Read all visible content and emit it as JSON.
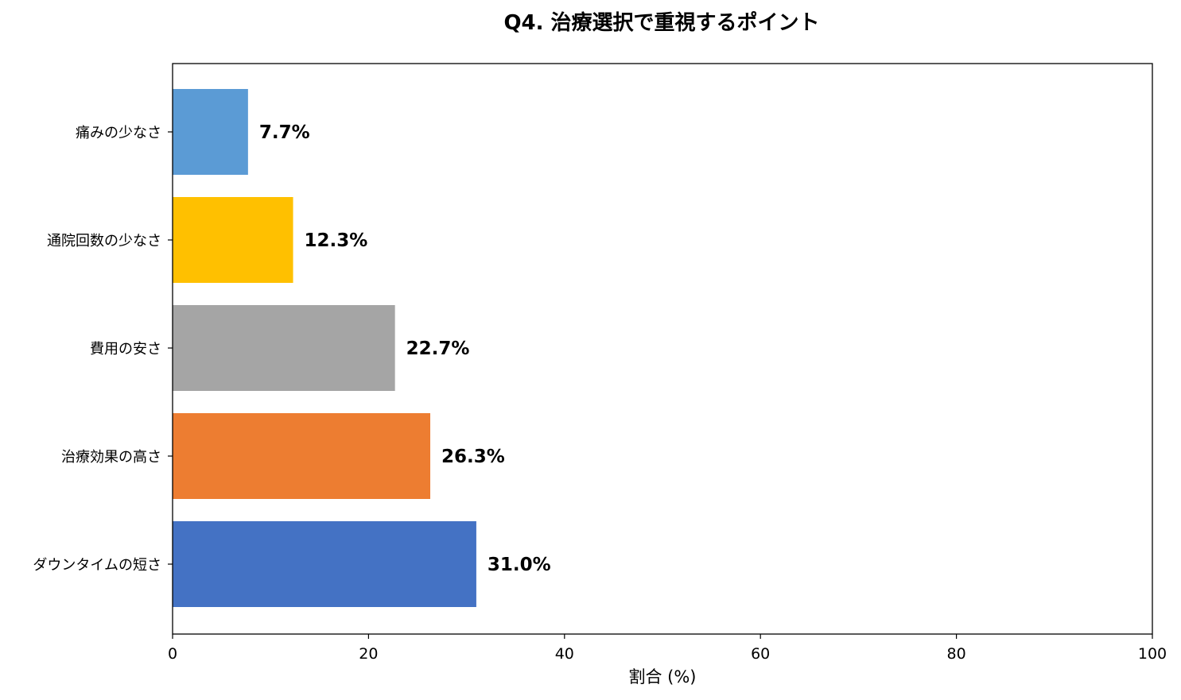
{
  "chart_data": {
    "type": "bar",
    "orientation": "horizontal",
    "title": "Q4. 治療選択で重視するポイント",
    "xlabel": "割合 (%)",
    "ylabel": "",
    "xlim": [
      0,
      100
    ],
    "xticks": [
      0,
      20,
      40,
      60,
      80,
      100
    ],
    "grid": false,
    "categories": [
      "痛みの少なさ",
      "通院回数の少なさ",
      "費用の安さ",
      "治療効果の高さ",
      "ダウンタイムの短さ"
    ],
    "values": [
      7.7,
      12.3,
      22.7,
      26.3,
      31.0
    ],
    "data_labels": [
      "7.7%",
      "12.3%",
      "22.7%",
      "26.3%",
      "31.0%"
    ],
    "colors": [
      "#5b9bd5",
      "#ffc000",
      "#a5a5a5",
      "#ed7d31",
      "#4472c4"
    ]
  }
}
